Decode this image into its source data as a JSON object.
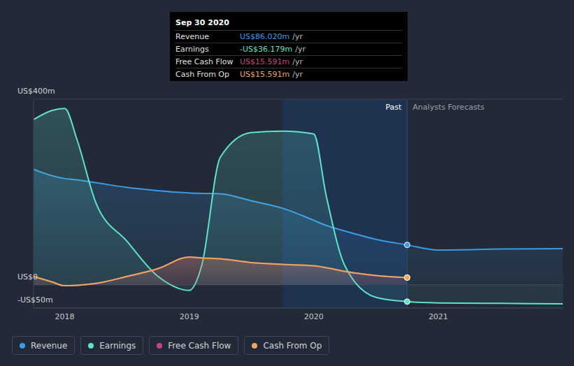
{
  "chart_data": {
    "type": "area",
    "x": [
      2017.75,
      2017.9,
      2018,
      2018.1,
      2018.25,
      2018.5,
      2018.75,
      2019,
      2019.1,
      2019.25,
      2019.5,
      2019.75,
      2020,
      2020.1,
      2020.25,
      2020.5,
      2020.75,
      2021,
      2021.5,
      2022
    ],
    "xlim": [
      2017.75,
      2022
    ],
    "xticks": [
      2018,
      2019,
      2020,
      2021
    ],
    "ylim": [
      -50,
      400
    ],
    "yticks": [
      {
        "value": -50,
        "label": "-US$50m"
      },
      {
        "value": 0,
        "label": "US$0"
      },
      {
        "value": 400,
        "label": "US$400m"
      }
    ],
    "grid": true,
    "series": [
      {
        "name": "Revenue",
        "color": "#3a9ae6",
        "values": [
          249,
          235,
          229,
          226,
          220,
          210,
          203,
          198,
          197,
          196,
          181,
          165,
          139,
          128,
          116,
          98,
          86.02,
          75,
          77,
          78
        ]
      },
      {
        "name": "Earnings",
        "color": "#5fe3c8",
        "values": [
          356,
          376,
          380,
          312,
          177,
          94,
          18,
          -12,
          41,
          275,
          328,
          331,
          325,
          192,
          41,
          -27,
          -36.179,
          -39,
          -40,
          -41
        ]
      },
      {
        "name": "Free Cash Flow",
        "color": "#c6457f",
        "values": [
          18,
          6,
          -2,
          -1,
          3,
          18,
          35,
          60,
          58,
          56,
          48,
          44,
          41,
          37,
          29,
          20,
          15.591,
          null,
          null,
          null
        ]
      },
      {
        "name": "Cash From Op",
        "color": "#e8a85c",
        "values": [
          18,
          6,
          -2,
          -1,
          3,
          18,
          35,
          60,
          58,
          56,
          48,
          44,
          41,
          37,
          29,
          20,
          15.591,
          null,
          null,
          null
        ]
      }
    ],
    "highlight": {
      "x1": 2019.75,
      "x2": 2020.75
    },
    "divider": {
      "x": 2020.75,
      "left_label": "Past",
      "right_label": "Analysts Forecasts"
    },
    "tooltip": {
      "title": "Sep 30 2020",
      "suffix": "/yr",
      "rows": [
        {
          "label": "Revenue",
          "value": "US$86.020m"
        },
        {
          "label": "Earnings",
          "value": "-US$36.179m"
        },
        {
          "label": "Free Cash Flow",
          "value": "US$15.591m"
        },
        {
          "label": "Cash From Op",
          "value": "US$15.591m"
        }
      ]
    }
  }
}
